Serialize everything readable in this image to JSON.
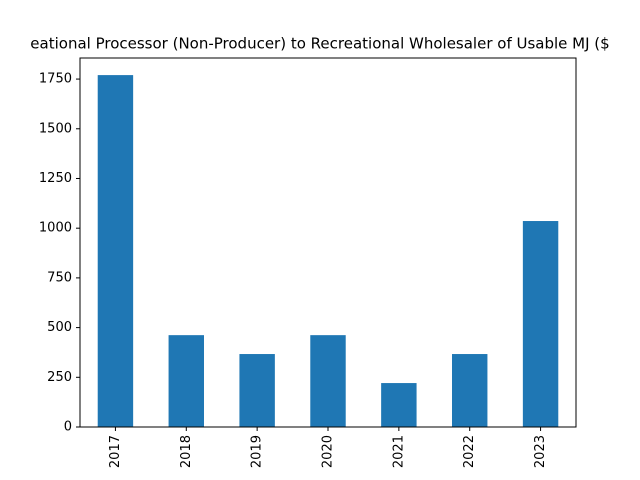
{
  "chart_data": {
    "type": "bar",
    "title": "eational Processor (Non-Producer) to Recreational Wholesaler of Usable MJ ($",
    "categories": [
      "2017",
      "2018",
      "2019",
      "2020",
      "2021",
      "2022",
      "2023"
    ],
    "values": [
      1770,
      462,
      367,
      462,
      221,
      367,
      1036
    ],
    "color": "#1f77b4",
    "ylim": [
      0,
      1856
    ],
    "yticks": [
      0,
      250,
      500,
      750,
      1000,
      1250,
      1500,
      1750
    ]
  }
}
